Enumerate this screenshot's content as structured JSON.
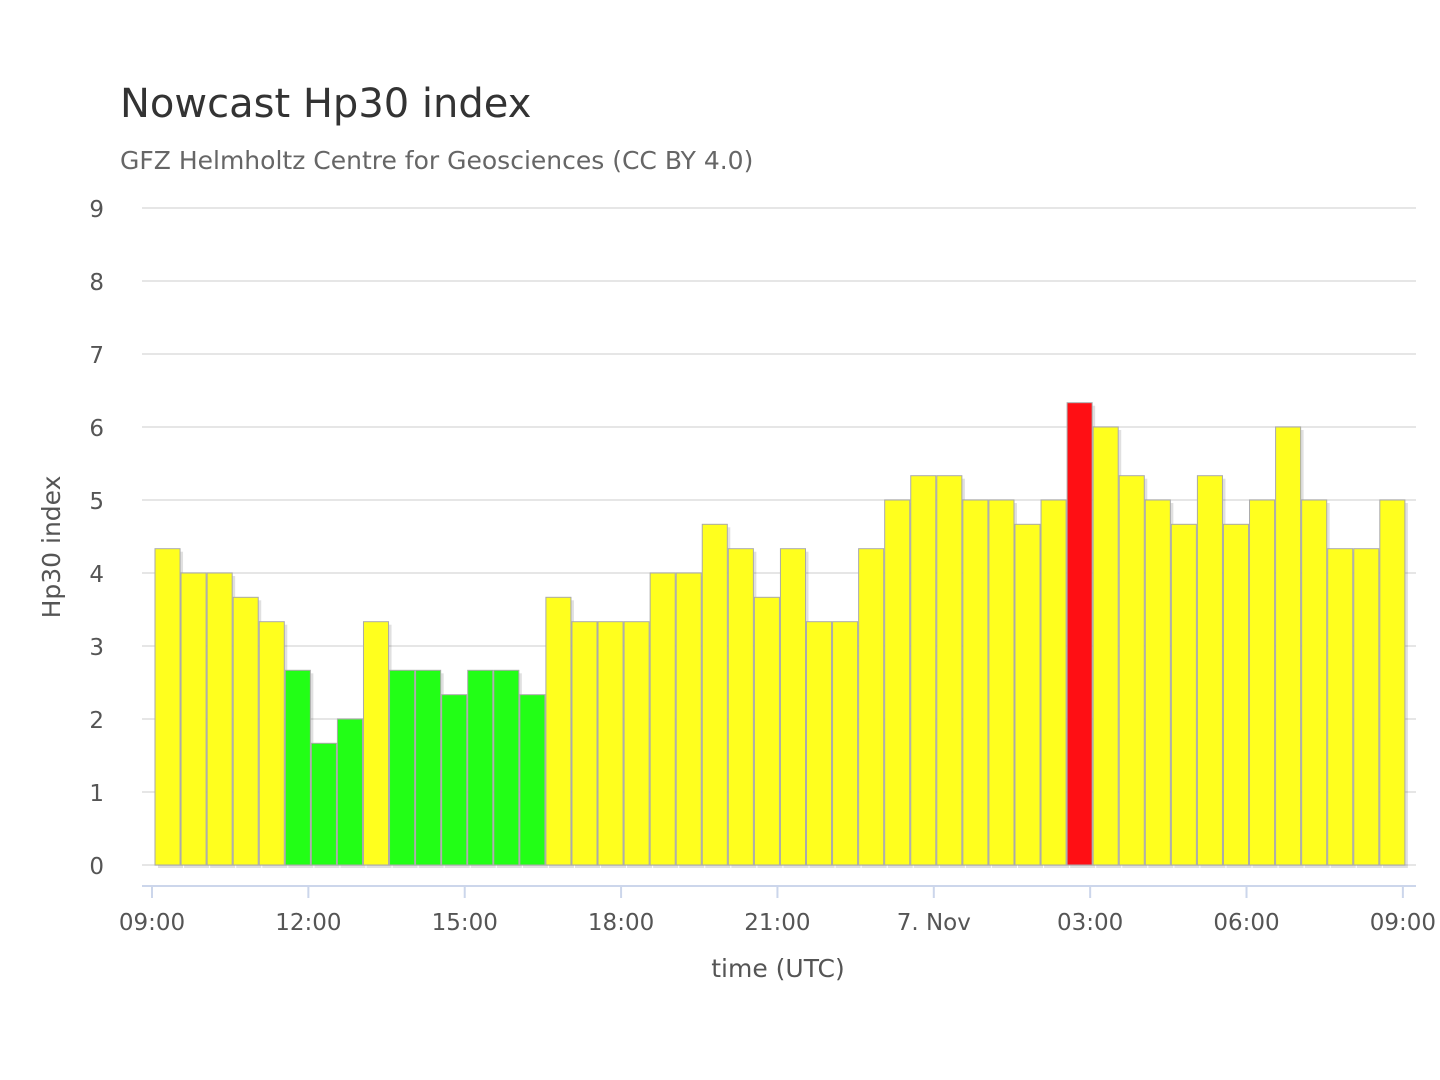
{
  "chart_data": {
    "type": "bar",
    "title": "Nowcast Hp30 index",
    "subtitle": "GFZ Helmholtz Centre for Geosciences (CC BY 4.0)",
    "xlabel": "time (UTC)",
    "ylabel": "Hp30 index",
    "ylim": [
      0,
      9
    ],
    "yticks": [
      "0",
      "1",
      "2",
      "3",
      "4",
      "5",
      "6",
      "7",
      "8",
      "9"
    ],
    "xticks": [
      {
        "label": "09:00",
        "halfhour": 0
      },
      {
        "label": "12:00",
        "halfhour": 6
      },
      {
        "label": "15:00",
        "halfhour": 12
      },
      {
        "label": "18:00",
        "halfhour": 18
      },
      {
        "label": "21:00",
        "halfhour": 24
      },
      {
        "label": "7. Nov",
        "halfhour": 30
      },
      {
        "label": "03:00",
        "halfhour": 36
      },
      {
        "label": "06:00",
        "halfhour": 42
      },
      {
        "label": "09:00",
        "halfhour": 48
      }
    ],
    "grid": true,
    "colors": {
      "quiet": "#22ff16",
      "active": "#ffff1e",
      "storm": "#ff0f14"
    },
    "categories": [
      "09:00",
      "09:30",
      "10:00",
      "10:30",
      "11:00",
      "11:30",
      "12:00",
      "12:30",
      "13:00",
      "13:30",
      "14:00",
      "14:30",
      "15:00",
      "15:30",
      "16:00",
      "16:30",
      "17:00",
      "17:30",
      "18:00",
      "18:30",
      "19:00",
      "19:30",
      "20:00",
      "20:30",
      "21:00",
      "21:30",
      "22:00",
      "22:30",
      "23:00",
      "23:30",
      "00:00",
      "00:30",
      "01:00",
      "01:30",
      "02:00",
      "02:30",
      "03:00",
      "03:30",
      "04:00",
      "04:30",
      "05:00",
      "05:30",
      "06:00",
      "06:30",
      "07:00",
      "07:30",
      "08:00",
      "08:30"
    ],
    "values": [
      4.333,
      4,
      4,
      3.667,
      3.333,
      2.667,
      1.667,
      2,
      3.333,
      2.667,
      2.667,
      2.333,
      2.667,
      2.667,
      2.333,
      3.667,
      3.333,
      3.333,
      3.333,
      4,
      4,
      4.667,
      4.333,
      3.667,
      4.333,
      3.333,
      3.333,
      4.333,
      5,
      5.333,
      5.333,
      5,
      5,
      4.667,
      5,
      6.333,
      6,
      5.333,
      5,
      4.667,
      5.333,
      4.667,
      5,
      6,
      5,
      4.333,
      4.333,
      5
    ]
  }
}
